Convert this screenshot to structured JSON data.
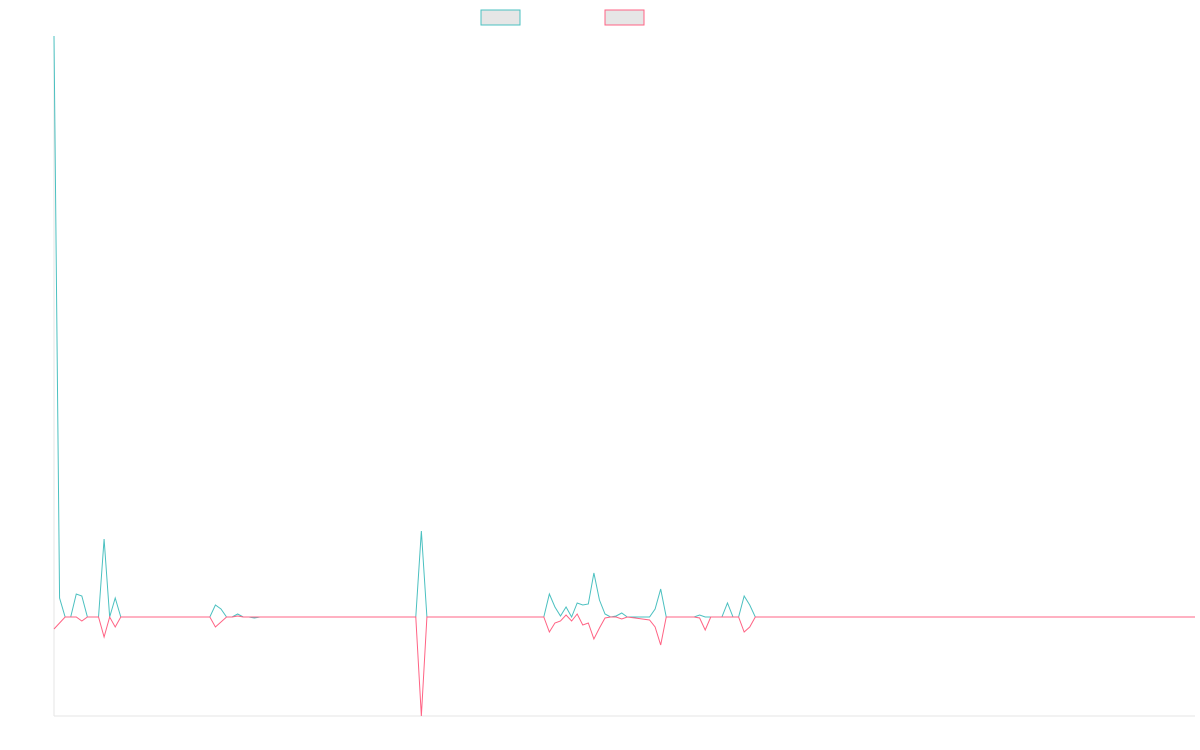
{
  "chart_data": {
    "type": "line",
    "x": [
      0,
      1,
      2,
      3,
      4,
      5,
      6,
      7,
      8,
      9,
      10,
      11,
      12,
      28,
      29,
      30,
      31,
      32,
      33,
      34,
      35,
      36,
      37,
      65,
      66,
      67,
      88,
      89,
      90,
      91,
      92,
      93,
      94,
      95,
      96,
      97,
      98,
      99,
      100,
      101,
      102,
      103,
      107,
      108,
      109,
      110,
      115,
      116,
      117,
      118,
      120,
      121,
      122,
      123,
      124,
      125,
      126,
      205
    ],
    "xlim": [
      0,
      205
    ],
    "ylim": [
      -9.9,
      58.1
    ],
    "grid": false,
    "series": [
      {
        "color": "#4bc0c0",
        "values": [
          58.1,
          1.9,
          0,
          0,
          2.3,
          2.1,
          0,
          0,
          0,
          7.8,
          0,
          1.9,
          0,
          0,
          1.2,
          0.8,
          0,
          0,
          0.3,
          0,
          0,
          -0.1,
          0,
          0,
          8.6,
          0,
          0,
          2.3,
          1,
          0.1,
          1,
          0,
          1.4,
          1.2,
          1.3,
          4.4,
          1.7,
          0.3,
          0,
          0.1,
          0.4,
          0,
          0,
          0.8,
          2.8,
          0,
          0,
          0.2,
          0,
          0,
          0,
          1.4,
          0,
          0,
          2.1,
          1.2,
          0,
          0
        ]
      },
      {
        "color": "#ff6384",
        "values": [
          -1.2,
          -0.6,
          0,
          0,
          0,
          -0.4,
          0,
          0,
          0,
          -2,
          0,
          -1,
          0,
          0,
          -1,
          -0.5,
          0,
          0,
          0.1,
          0,
          0,
          0,
          0,
          0,
          -9.9,
          0,
          0,
          -1.5,
          -0.6,
          -0.4,
          0.2,
          -0.4,
          0.3,
          -0.8,
          -0.6,
          -2.2,
          -1.1,
          -0.1,
          0,
          0,
          -0.2,
          0,
          -0.3,
          -1,
          -2.8,
          0,
          0,
          -0.1,
          -1.3,
          0,
          0,
          0,
          0,
          0,
          -1.5,
          -1,
          0,
          0
        ]
      }
    ]
  }
}
